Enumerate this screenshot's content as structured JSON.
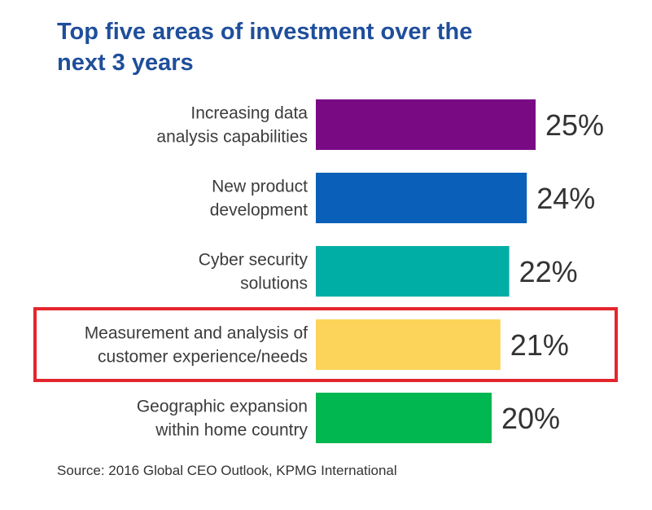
{
  "chart_data": {
    "type": "bar",
    "orientation": "horizontal",
    "title": "Top five areas of investment over the next 3 years",
    "title_lines": [
      "Top five areas of investment over the",
      "next 3 years"
    ],
    "categories": [
      [
        "Increasing data",
        "analysis capabilities"
      ],
      [
        "New product",
        "development"
      ],
      [
        "Cyber security",
        "solutions"
      ],
      [
        "Measurement and analysis of",
        "customer experience/needs"
      ],
      [
        "Geographic expansion",
        "within home country"
      ]
    ],
    "values": [
      25,
      24,
      22,
      21,
      20
    ],
    "value_labels": [
      "25%",
      "24%",
      "22%",
      "21%",
      "20%"
    ],
    "value_unit": "%",
    "colors": [
      "#7a0a84",
      "#0a60b8",
      "#00aea6",
      "#fdd45a",
      "#00b750"
    ],
    "highlight_index": 3,
    "highlight_color": "#e3262e",
    "xlim": [
      0,
      25
    ],
    "grid": false,
    "legend": "none",
    "source": "Source: 2016 Global CEO Outlook, KPMG International"
  }
}
